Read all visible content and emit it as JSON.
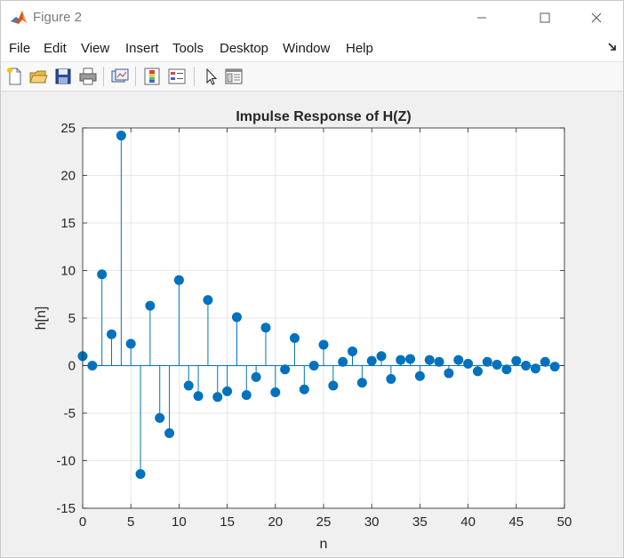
{
  "window": {
    "title": "Figure 2",
    "controls": [
      "minimize",
      "maximize",
      "close"
    ]
  },
  "menu": {
    "items": [
      {
        "label": "File"
      },
      {
        "label": "Edit"
      },
      {
        "label": "View"
      },
      {
        "label": "Insert"
      },
      {
        "label": "Tools"
      },
      {
        "label": "Desktop"
      },
      {
        "label": "Window"
      },
      {
        "label": "Help"
      }
    ]
  },
  "toolbar": {
    "buttons": [
      "new-figure-icon",
      "open-file-icon",
      "save-icon",
      "print-icon",
      "link-plot-icon",
      "colorbar-icon",
      "legend-icon",
      "edit-plot-icon",
      "property-inspector-icon"
    ]
  },
  "colors": {
    "stem": "#0072bd",
    "axes_bg": "#ffffff",
    "figure_bg": "#f0f0f0",
    "grid": "#dfdfdf"
  },
  "chart_data": {
    "type": "stem",
    "title": "Impulse Response of H(Z)",
    "xlabel": "n",
    "ylabel": "h[n]",
    "xlim": [
      0,
      50
    ],
    "ylim": [
      -15,
      25
    ],
    "xticks": [
      "0",
      "5",
      "10",
      "15",
      "20",
      "25",
      "30",
      "35",
      "40",
      "45",
      "50"
    ],
    "yticks": [
      "-15",
      "-10",
      "-5",
      "0",
      "5",
      "10",
      "15",
      "20",
      "25"
    ],
    "grid": true,
    "x": [
      0,
      1,
      2,
      3,
      4,
      5,
      6,
      7,
      8,
      9,
      10,
      11,
      12,
      13,
      14,
      15,
      16,
      17,
      18,
      19,
      20,
      21,
      22,
      23,
      24,
      25,
      26,
      27,
      28,
      29,
      30,
      31,
      32,
      33,
      34,
      35,
      36,
      37,
      38,
      39,
      40,
      41,
      42,
      43,
      44,
      45,
      46,
      47,
      48,
      49
    ],
    "values": [
      1.0,
      0.0,
      9.6,
      3.3,
      24.2,
      2.3,
      -11.4,
      6.3,
      -5.5,
      -7.1,
      9.0,
      -2.1,
      -3.2,
      6.9,
      -3.3,
      -2.7,
      5.1,
      -3.1,
      -1.2,
      4.0,
      -2.8,
      -0.4,
      2.9,
      -2.5,
      0.0,
      2.2,
      -2.1,
      0.4,
      1.5,
      -1.8,
      0.5,
      1.0,
      -1.4,
      0.6,
      0.7,
      -1.1,
      0.6,
      0.4,
      -0.8,
      0.6,
      0.2,
      -0.6,
      0.4,
      0.1,
      -0.4,
      0.5,
      0.0,
      -0.3,
      0.4,
      -0.1
    ]
  }
}
